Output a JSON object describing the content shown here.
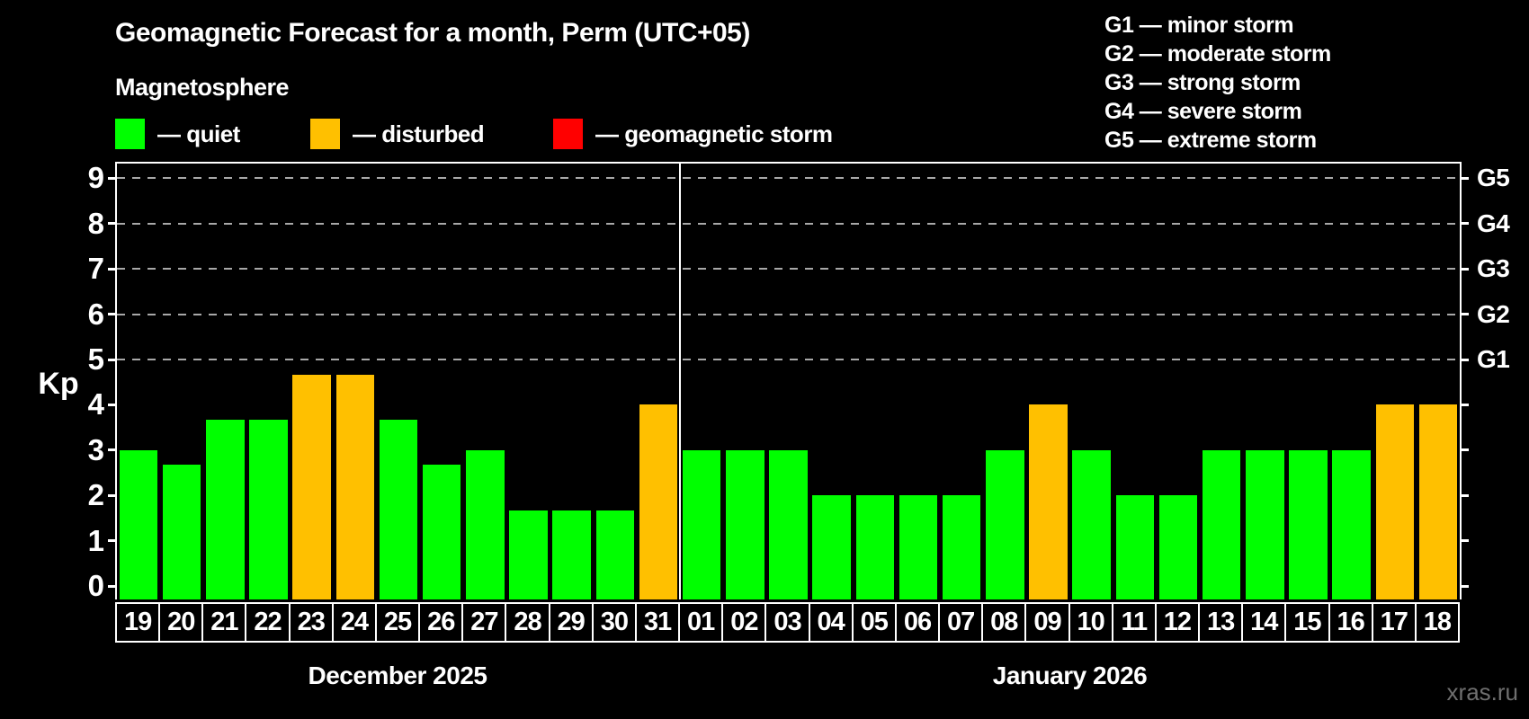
{
  "title": "Geomagnetic Forecast for a month, Perm (UTC+05)",
  "subtitle": "Magnetosphere",
  "legend": {
    "items": [
      {
        "name": "quiet",
        "label": "— quiet",
        "color": "#00ff00"
      },
      {
        "name": "disturbed",
        "label": "— disturbed",
        "color": "#ffc000"
      },
      {
        "name": "storm",
        "label": "— geomagnetic storm",
        "color": "#ff0000"
      }
    ]
  },
  "storm_scale_legend": [
    "G1 — minor storm",
    "G2 — moderate storm",
    "G3 — strong storm",
    "G4 — severe storm",
    "G5 — extreme storm"
  ],
  "watermark": "xras.ru",
  "chart_data": {
    "type": "bar",
    "title": "Geomagnetic Forecast for a month, Perm (UTC+05)",
    "ylabel": "Kp",
    "ylim": [
      0,
      9
    ],
    "y_ticks": [
      0,
      1,
      2,
      3,
      4,
      5,
      6,
      7,
      8,
      9
    ],
    "gridlines_at": [
      5,
      6,
      7,
      8,
      9
    ],
    "grid_style": "dashed",
    "legend_position": "top-left",
    "right_axis_labels": [
      {
        "kp": 5,
        "label": "G1"
      },
      {
        "kp": 6,
        "label": "G2"
      },
      {
        "kp": 7,
        "label": "G3"
      },
      {
        "kp": 8,
        "label": "G4"
      },
      {
        "kp": 9,
        "label": "G5"
      }
    ],
    "colors": {
      "quiet": "#00ff00",
      "disturbed": "#ffc000",
      "storm": "#ff0000"
    },
    "groups": [
      {
        "label": "December 2025",
        "days": [
          {
            "day": "19",
            "kp": 3.0,
            "status": "quiet"
          },
          {
            "day": "20",
            "kp": 2.67,
            "status": "quiet"
          },
          {
            "day": "21",
            "kp": 3.67,
            "status": "quiet"
          },
          {
            "day": "22",
            "kp": 3.67,
            "status": "quiet"
          },
          {
            "day": "23",
            "kp": 4.67,
            "status": "disturbed"
          },
          {
            "day": "24",
            "kp": 4.67,
            "status": "disturbed"
          },
          {
            "day": "25",
            "kp": 3.67,
            "status": "quiet"
          },
          {
            "day": "26",
            "kp": 2.67,
            "status": "quiet"
          },
          {
            "day": "27",
            "kp": 3.0,
            "status": "quiet"
          },
          {
            "day": "28",
            "kp": 1.67,
            "status": "quiet"
          },
          {
            "day": "29",
            "kp": 1.67,
            "status": "quiet"
          },
          {
            "day": "30",
            "kp": 1.67,
            "status": "quiet"
          },
          {
            "day": "31",
            "kp": 4.0,
            "status": "disturbed"
          }
        ]
      },
      {
        "label": "January 2026",
        "days": [
          {
            "day": "01",
            "kp": 3.0,
            "status": "quiet"
          },
          {
            "day": "02",
            "kp": 3.0,
            "status": "quiet"
          },
          {
            "day": "03",
            "kp": 3.0,
            "status": "quiet"
          },
          {
            "day": "04",
            "kp": 2.0,
            "status": "quiet"
          },
          {
            "day": "05",
            "kp": 2.0,
            "status": "quiet"
          },
          {
            "day": "06",
            "kp": 2.0,
            "status": "quiet"
          },
          {
            "day": "07",
            "kp": 2.0,
            "status": "quiet"
          },
          {
            "day": "08",
            "kp": 3.0,
            "status": "quiet"
          },
          {
            "day": "09",
            "kp": 4.0,
            "status": "disturbed"
          },
          {
            "day": "10",
            "kp": 3.0,
            "status": "quiet"
          },
          {
            "day": "11",
            "kp": 2.0,
            "status": "quiet"
          },
          {
            "day": "12",
            "kp": 2.0,
            "status": "quiet"
          },
          {
            "day": "13",
            "kp": 3.0,
            "status": "quiet"
          },
          {
            "day": "14",
            "kp": 3.0,
            "status": "quiet"
          },
          {
            "day": "15",
            "kp": 3.0,
            "status": "quiet"
          },
          {
            "day": "16",
            "kp": 3.0,
            "status": "quiet"
          },
          {
            "day": "17",
            "kp": 4.0,
            "status": "disturbed"
          },
          {
            "day": "18",
            "kp": 4.0,
            "status": "disturbed"
          }
        ]
      }
    ]
  }
}
